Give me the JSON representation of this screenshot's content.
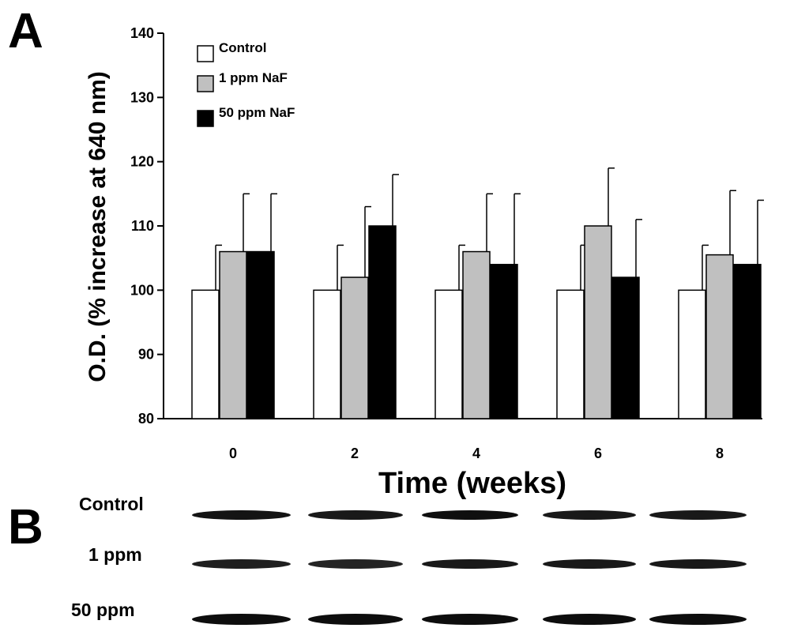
{
  "panel_a_label": "A",
  "panel_b_label": "B",
  "chart_data": {
    "type": "bar",
    "title": "",
    "xlabel": "Time (weeks)",
    "ylabel": "O.D. (% increase at 640 nm)",
    "categories": [
      "0",
      "2",
      "4",
      "6",
      "8"
    ],
    "ylim": [
      80,
      140
    ],
    "yticks": [
      80,
      90,
      100,
      110,
      120,
      130,
      140
    ],
    "grid": false,
    "legend_position": "top-left",
    "series": [
      {
        "name": "Control",
        "color": "#ffffff",
        "values": [
          100,
          100,
          100,
          100,
          100
        ],
        "errors": [
          7,
          7,
          7,
          7,
          7
        ]
      },
      {
        "name": "1 ppm NaF",
        "color": "#c0c0c0",
        "values": [
          106,
          102,
          106,
          110,
          105.5
        ],
        "errors": [
          9,
          11,
          9,
          9,
          10
        ]
      },
      {
        "name": "50 ppm NaF",
        "color": "#000000",
        "values": [
          106,
          110,
          104,
          102,
          104
        ],
        "errors": [
          9,
          8,
          11,
          9,
          10
        ]
      }
    ]
  },
  "blot": {
    "rows": [
      {
        "label": "Control",
        "intensities": [
          0.92,
          0.9,
          0.94,
          0.9,
          0.9
        ]
      },
      {
        "label": "1 ppm",
        "intensities": [
          0.88,
          0.86,
          0.9,
          0.9,
          0.9
        ]
      },
      {
        "label": "50 ppm",
        "intensities": [
          0.95,
          0.95,
          0.95,
          0.95,
          0.95
        ]
      }
    ]
  }
}
